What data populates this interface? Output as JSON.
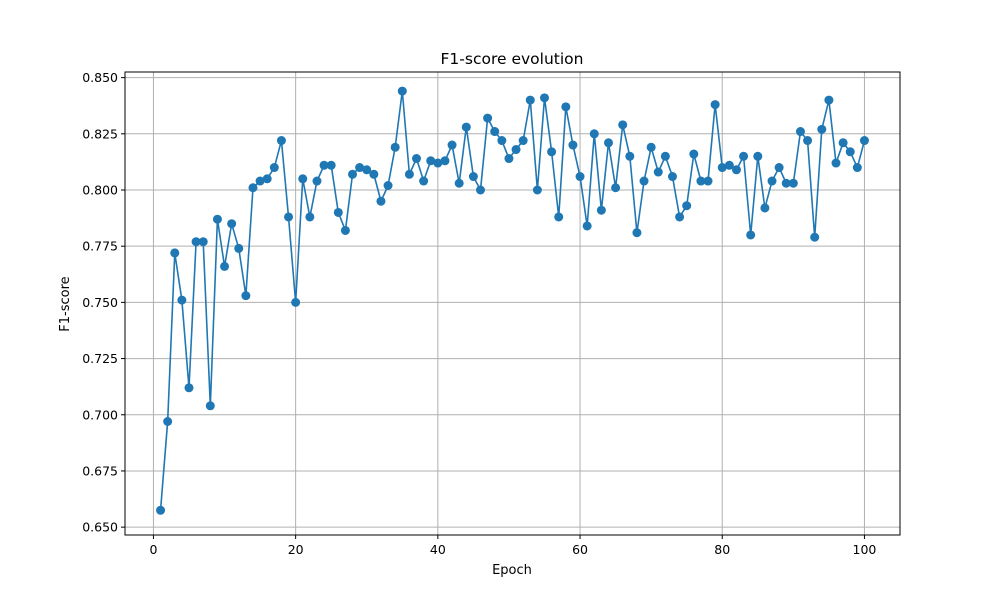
{
  "chart_data": {
    "type": "line",
    "title": "F1-score evolution",
    "xlabel": "Epoch",
    "ylabel": "F1-score",
    "xlim": [
      -4,
      105
    ],
    "ylim": [
      0.6465,
      0.8525
    ],
    "xticks": [
      0,
      20,
      40,
      60,
      80,
      100
    ],
    "xtick_labels": [
      "0",
      "20",
      "40",
      "60",
      "80",
      "100"
    ],
    "yticks": [
      0.65,
      0.675,
      0.7,
      0.725,
      0.75,
      0.775,
      0.8,
      0.825,
      0.85
    ],
    "ytick_labels": [
      "0.650",
      "0.675",
      "0.700",
      "0.725",
      "0.750",
      "0.775",
      "0.800",
      "0.825",
      "0.850"
    ],
    "grid": true,
    "marker": "circle",
    "color": "#1f77b4",
    "series": [
      {
        "x": [
          1,
          2,
          3,
          4,
          5,
          6,
          7,
          8,
          9,
          10,
          11,
          12,
          13,
          14,
          15,
          16,
          17,
          18,
          19,
          20,
          21,
          22,
          23,
          24,
          25,
          26,
          27,
          28,
          29,
          30,
          31,
          32,
          33,
          34,
          35,
          36,
          37,
          38,
          39,
          40,
          41,
          42,
          43,
          44,
          45,
          46,
          47,
          48,
          49,
          50,
          51,
          52,
          53,
          54,
          55,
          56,
          57,
          58,
          59,
          60,
          61,
          62,
          63,
          64,
          65,
          66,
          67,
          68,
          69,
          70,
          71,
          72,
          73,
          74,
          75,
          76,
          77,
          78,
          79,
          80,
          81,
          82,
          83,
          84,
          85,
          86,
          87,
          88,
          89,
          90,
          91,
          92,
          93,
          94,
          95,
          96,
          97,
          98,
          99,
          100
        ],
        "y": [
          0.6575,
          0.697,
          0.772,
          0.751,
          0.712,
          0.777,
          0.777,
          0.704,
          0.787,
          0.766,
          0.785,
          0.774,
          0.753,
          0.801,
          0.804,
          0.805,
          0.81,
          0.822,
          0.788,
          0.75,
          0.805,
          0.788,
          0.804,
          0.811,
          0.811,
          0.79,
          0.782,
          0.807,
          0.81,
          0.809,
          0.807,
          0.795,
          0.802,
          0.819,
          0.844,
          0.807,
          0.814,
          0.804,
          0.813,
          0.812,
          0.813,
          0.82,
          0.803,
          0.828,
          0.806,
          0.8,
          0.832,
          0.826,
          0.822,
          0.814,
          0.818,
          0.822,
          0.84,
          0.8,
          0.841,
          0.817,
          0.788,
          0.837,
          0.82,
          0.806,
          0.784,
          0.825,
          0.791,
          0.821,
          0.801,
          0.829,
          0.815,
          0.781,
          0.804,
          0.819,
          0.808,
          0.815,
          0.806,
          0.788,
          0.793,
          0.816,
          0.804,
          0.804,
          0.838,
          0.81,
          0.811,
          0.809,
          0.815,
          0.78,
          0.815,
          0.792,
          0.804,
          0.81,
          0.803,
          0.803,
          0.826,
          0.822,
          0.779,
          0.827,
          0.84,
          0.812,
          0.821,
          0.817,
          0.81,
          0.822
        ]
      }
    ]
  }
}
